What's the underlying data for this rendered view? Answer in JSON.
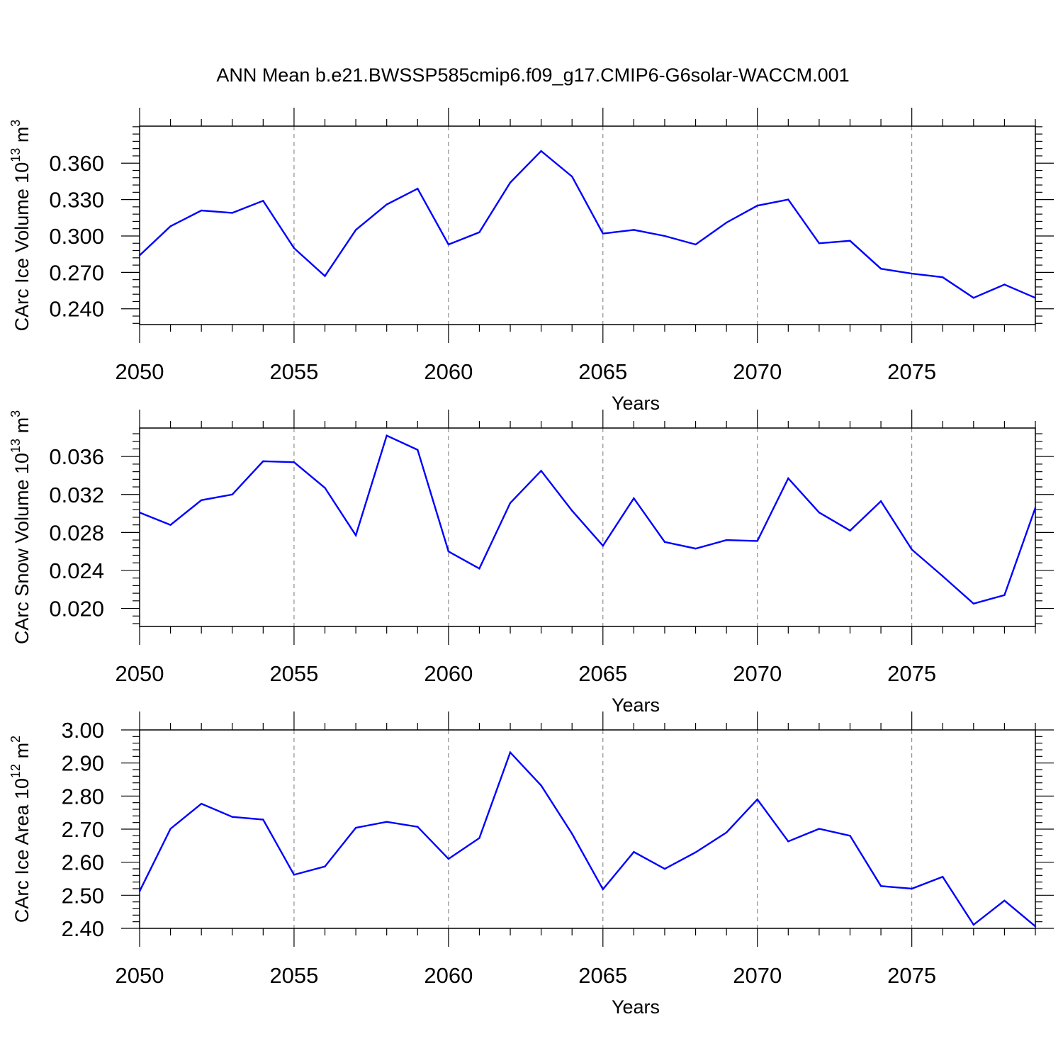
{
  "title": "ANN Mean b.e21.BWSSP585cmip6.f09_g17.CMIP6-G6solar-WACCM.001",
  "colors": {
    "line": "#0000ff",
    "grid": "#777777",
    "axes": "#000000"
  },
  "chart_data": [
    {
      "type": "line",
      "ylabel": {
        "text": "CArc Ice Volume 10",
        "exp": "13",
        "unit": " m",
        "unit_exp": "3"
      },
      "xlabel": "Years",
      "xlim": [
        2050,
        2079
      ],
      "ylim": [
        0.227,
        0.3905
      ],
      "yticks": [
        0.24,
        0.27,
        0.3,
        0.33,
        0.36
      ],
      "ytick_labels": [
        "0.240",
        "0.270",
        "0.300",
        "0.330",
        "0.360"
      ],
      "xticks": [
        2050,
        2055,
        2060,
        2065,
        2070,
        2075
      ],
      "xtick_labels": [
        "2050",
        "2055",
        "2060",
        "2065",
        "2070",
        "2075"
      ],
      "vgrid": [
        2055,
        2060,
        2065,
        2070,
        2075
      ],
      "grid": "vertical dashed",
      "x": [
        2050,
        2051,
        2052,
        2053,
        2054,
        2055,
        2056,
        2057,
        2058,
        2059,
        2060,
        2061,
        2062,
        2063,
        2064,
        2065,
        2066,
        2067,
        2068,
        2069,
        2070,
        2071,
        2072,
        2073,
        2074,
        2075,
        2076,
        2077,
        2078,
        2079
      ],
      "values": [
        0.284,
        0.308,
        0.321,
        0.319,
        0.329,
        0.29,
        0.267,
        0.305,
        0.326,
        0.339,
        0.293,
        0.303,
        0.344,
        0.37,
        0.349,
        0.302,
        0.305,
        0.3,
        0.293,
        0.311,
        0.325,
        0.33,
        0.294,
        0.296,
        0.273,
        0.269,
        0.266,
        0.249,
        0.26,
        0.249
      ]
    },
    {
      "type": "line",
      "ylabel": {
        "text": "CArc Snow Volume 10",
        "exp": "13",
        "unit": " m",
        "unit_exp": "3"
      },
      "xlabel": "Years",
      "xlim": [
        2050,
        2079
      ],
      "ylim": [
        0.0181,
        0.039
      ],
      "yticks": [
        0.02,
        0.024,
        0.028,
        0.032,
        0.036
      ],
      "ytick_labels": [
        "0.020",
        "0.024",
        "0.028",
        "0.032",
        "0.036"
      ],
      "xticks": [
        2050,
        2055,
        2060,
        2065,
        2070,
        2075
      ],
      "xtick_labels": [
        "2050",
        "2055",
        "2060",
        "2065",
        "2070",
        "2075"
      ],
      "vgrid": [
        2055,
        2060,
        2065,
        2070,
        2075
      ],
      "grid": "vertical dashed",
      "x": [
        2050,
        2051,
        2052,
        2053,
        2054,
        2055,
        2056,
        2057,
        2058,
        2059,
        2060,
        2061,
        2062,
        2063,
        2064,
        2065,
        2066,
        2067,
        2068,
        2069,
        2070,
        2071,
        2072,
        2073,
        2074,
        2075,
        2076,
        2077,
        2078,
        2079
      ],
      "values": [
        0.0301,
        0.0288,
        0.0314,
        0.032,
        0.0355,
        0.0354,
        0.0327,
        0.0277,
        0.0382,
        0.0367,
        0.026,
        0.0242,
        0.0311,
        0.0345,
        0.0303,
        0.0266,
        0.0316,
        0.027,
        0.0263,
        0.0272,
        0.0271,
        0.0337,
        0.0301,
        0.0282,
        0.0313,
        0.0262,
        0.0234,
        0.0205,
        0.0214,
        0.0306
      ]
    },
    {
      "type": "line",
      "ylabel": {
        "text": "CArc Ice Area 10",
        "exp": "12",
        "unit": " m",
        "unit_exp": "2"
      },
      "xlabel": "Years",
      "xlim": [
        2050,
        2079
      ],
      "ylim": [
        2.4,
        3.0
      ],
      "yticks": [
        2.4,
        2.5,
        2.6,
        2.7,
        2.8,
        2.9,
        3.0
      ],
      "ytick_labels": [
        "2.40",
        "2.50",
        "2.60",
        "2.70",
        "2.80",
        "2.90",
        "3.00"
      ],
      "xticks": [
        2050,
        2055,
        2060,
        2065,
        2070,
        2075
      ],
      "xtick_labels": [
        "2050",
        "2055",
        "2060",
        "2065",
        "2070",
        "2075"
      ],
      "vgrid": [
        2055,
        2060,
        2065,
        2070,
        2075
      ],
      "grid": "vertical dashed",
      "x": [
        2050,
        2051,
        2052,
        2053,
        2054,
        2055,
        2056,
        2057,
        2058,
        2059,
        2060,
        2061,
        2062,
        2063,
        2064,
        2065,
        2066,
        2067,
        2068,
        2069,
        2070,
        2071,
        2072,
        2073,
        2074,
        2075,
        2076,
        2077,
        2078,
        2079
      ],
      "values": [
        2.512,
        2.701,
        2.777,
        2.737,
        2.729,
        2.562,
        2.587,
        2.704,
        2.722,
        2.707,
        2.61,
        2.673,
        2.932,
        2.832,
        2.686,
        2.518,
        2.631,
        2.58,
        2.63,
        2.69,
        2.79,
        2.663,
        2.701,
        2.68,
        2.528,
        2.52,
        2.556,
        2.411,
        2.484,
        2.406
      ]
    }
  ]
}
